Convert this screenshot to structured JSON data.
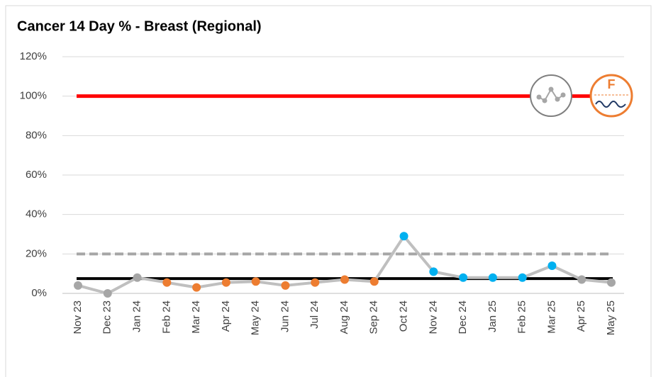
{
  "chart_data": {
    "type": "line",
    "title": "Cancer 14 Day % - Breast (Regional)",
    "categories": [
      "Nov 23",
      "Dec 23",
      "Jan 24",
      "Feb 24",
      "Mar 24",
      "Apr 24",
      "May 24",
      "Jun 24",
      "Jul 24",
      "Aug 24",
      "Sep 24",
      "Oct 24",
      "Nov 24",
      "Dec 24",
      "Jan 25",
      "Feb 25",
      "Mar 25",
      "Apr 25",
      "May 25"
    ],
    "values": [
      4,
      0,
      8,
      5.5,
      3,
      5.5,
      6,
      4,
      5.5,
      7,
      6,
      29,
      11,
      8,
      8,
      8,
      14,
      7,
      5.5
    ],
    "color": "#bfbfbf",
    "point_colors": [
      "#a6a6a6",
      "#a6a6a6",
      "#a6a6a6",
      "#ed7d31",
      "#ed7d31",
      "#ed7d31",
      "#ed7d31",
      "#ed7d31",
      "#ed7d31",
      "#ed7d31",
      "#ed7d31",
      "#00b0f0",
      "#00b0f0",
      "#00b0f0",
      "#00b0f0",
      "#00b0f0",
      "#00b0f0",
      "#a6a6a6",
      "#a6a6a6"
    ],
    "target": 100,
    "target_color": "#ff0000",
    "mean": 7.5,
    "mean_color": "#000000",
    "upper_limit": 20,
    "upper_limit_color": "#a6a6a6",
    "assurance_icon": "F",
    "ylim": [
      0,
      120
    ],
    "yticks": [
      {
        "value": 0,
        "label": "0%"
      },
      {
        "value": 20,
        "label": "20%"
      },
      {
        "value": 40,
        "label": "40%"
      },
      {
        "value": 60,
        "label": "60%"
      },
      {
        "value": 80,
        "label": "80%"
      },
      {
        "value": 100,
        "label": "100%"
      },
      {
        "value": 120,
        "label": "120%"
      }
    ],
    "grid": true
  }
}
